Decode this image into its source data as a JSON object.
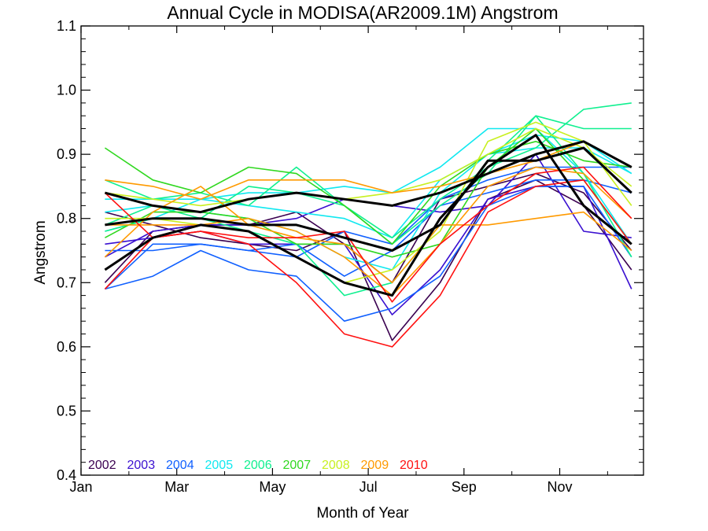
{
  "chart_data": {
    "type": "line",
    "title": "Annual Cycle in MODISA(AR2009.1M) Angstrom",
    "xlabel": "Month of Year",
    "ylabel": "Angstrom",
    "xlim": [
      1,
      12.75
    ],
    "ylim": [
      0.4,
      1.1
    ],
    "xticks": [
      {
        "value": 1,
        "label": "Jan"
      },
      {
        "value": 3,
        "label": "Mar"
      },
      {
        "value": 5,
        "label": "May"
      },
      {
        "value": 7,
        "label": "Jul"
      },
      {
        "value": 9,
        "label": "Sep"
      },
      {
        "value": 11,
        "label": "Nov"
      }
    ],
    "yticks": [
      {
        "value": 0.4,
        "label": "0.4"
      },
      {
        "value": 0.5,
        "label": "0.5"
      },
      {
        "value": 0.6,
        "label": "0.6"
      },
      {
        "value": 0.7,
        "label": "0.7"
      },
      {
        "value": 0.8,
        "label": "0.8"
      },
      {
        "value": 0.9,
        "label": "0.9"
      },
      {
        "value": 1.0,
        "label": "1.0"
      },
      {
        "value": 1.1,
        "label": "1.1"
      }
    ],
    "x": [
      1.5,
      2.5,
      3.5,
      4.5,
      5.5,
      6.5,
      7.5,
      8.5,
      9.5,
      10.5,
      11.5,
      12.5
    ],
    "legend_position": "bottom-left",
    "legend": [
      {
        "label": "2002",
        "color": "#3a0050"
      },
      {
        "label": "2003",
        "color": "#3a10d0"
      },
      {
        "label": "2004",
        "color": "#1060ff"
      },
      {
        "label": "2005",
        "color": "#10e8f0"
      },
      {
        "label": "2006",
        "color": "#10f090"
      },
      {
        "label": "2007",
        "color": "#30d820"
      },
      {
        "label": "2008",
        "color": "#c8f020"
      },
      {
        "label": "2009",
        "color": "#ff9a00"
      },
      {
        "label": "2010",
        "color": "#ff1010"
      }
    ],
    "series": [
      {
        "color": "#3a0050",
        "width": 1.6,
        "values": [
          0.81,
          0.79,
          0.77,
          0.76,
          0.75,
          0.78,
          0.61,
          0.7,
          0.83,
          0.86,
          0.82,
          0.72
        ]
      },
      {
        "color": "#3a0050",
        "width": 1.6,
        "values": [
          0.7,
          0.78,
          0.79,
          0.79,
          0.81,
          0.76,
          0.7,
          0.83,
          0.85,
          0.87,
          0.84,
          0.75
        ]
      },
      {
        "color": "#3a10d0",
        "width": 1.6,
        "values": [
          0.76,
          0.77,
          0.78,
          0.76,
          0.76,
          0.76,
          0.65,
          0.72,
          0.83,
          0.85,
          0.85,
          0.69
        ]
      },
      {
        "color": "#3a10d0",
        "width": 1.6,
        "values": [
          0.74,
          0.78,
          0.79,
          0.79,
          0.8,
          0.83,
          0.82,
          0.81,
          0.82,
          0.9,
          0.78,
          0.77
        ]
      },
      {
        "color": "#1060ff",
        "width": 1.6,
        "values": [
          0.69,
          0.71,
          0.75,
          0.72,
          0.71,
          0.64,
          0.66,
          0.71,
          0.82,
          0.85,
          0.85,
          0.74
        ]
      },
      {
        "color": "#1060ff",
        "width": 1.6,
        "values": [
          0.75,
          0.75,
          0.76,
          0.75,
          0.76,
          0.71,
          0.75,
          0.82,
          0.84,
          0.86,
          0.86,
          0.84
        ]
      },
      {
        "color": "#1060ff",
        "width": 1.6,
        "values": [
          0.69,
          0.76,
          0.76,
          0.75,
          0.74,
          0.78,
          0.76,
          0.83,
          0.86,
          0.88,
          0.88,
          0.88
        ]
      },
      {
        "color": "#10e8f0",
        "width": 1.6,
        "values": [
          0.83,
          0.83,
          0.83,
          0.84,
          0.84,
          0.85,
          0.84,
          0.88,
          0.94,
          0.94,
          0.87,
          0.76
        ]
      },
      {
        "color": "#10e8f0",
        "width": 1.6,
        "values": [
          0.78,
          0.8,
          0.83,
          0.82,
          0.81,
          0.8,
          0.77,
          0.86,
          0.9,
          0.93,
          0.92,
          0.87
        ]
      },
      {
        "color": "#10e8f0",
        "width": 1.6,
        "values": [
          0.81,
          0.82,
          0.81,
          0.8,
          0.78,
          0.74,
          0.72,
          0.84,
          0.9,
          0.91,
          0.91,
          0.87
        ]
      },
      {
        "color": "#10f090",
        "width": 1.6,
        "values": [
          0.79,
          0.82,
          0.8,
          0.85,
          0.84,
          0.82,
          0.76,
          0.82,
          0.87,
          0.96,
          0.94,
          0.94
        ]
      },
      {
        "color": "#10f090",
        "width": 1.6,
        "values": [
          0.86,
          0.83,
          0.84,
          0.82,
          0.88,
          0.82,
          0.77,
          0.83,
          0.88,
          0.91,
          0.97,
          0.98
        ]
      },
      {
        "color": "#10f090",
        "width": 1.6,
        "values": [
          0.78,
          0.8,
          0.8,
          0.78,
          0.76,
          0.68,
          0.7,
          0.79,
          0.89,
          0.96,
          0.87,
          0.74
        ]
      },
      {
        "color": "#30d820",
        "width": 1.6,
        "values": [
          0.91,
          0.86,
          0.84,
          0.88,
          0.87,
          0.82,
          0.76,
          0.85,
          0.9,
          0.92,
          0.89,
          0.88
        ]
      },
      {
        "color": "#30d820",
        "width": 1.6,
        "values": [
          0.77,
          0.81,
          0.81,
          0.8,
          0.76,
          0.76,
          0.74,
          0.76,
          0.88,
          0.94,
          0.86,
          0.76
        ]
      },
      {
        "color": "#c8f020",
        "width": 1.6,
        "values": [
          0.8,
          0.8,
          0.79,
          0.78,
          0.74,
          0.7,
          0.72,
          0.78,
          0.92,
          0.95,
          0.92,
          0.82
        ]
      },
      {
        "color": "#c8f020",
        "width": 1.6,
        "values": [
          0.84,
          0.83,
          0.82,
          0.83,
          0.84,
          0.83,
          0.84,
          0.86,
          0.9,
          0.94,
          0.91,
          0.85
        ]
      },
      {
        "color": "#ff9a00",
        "width": 1.6,
        "values": [
          0.86,
          0.85,
          0.83,
          0.86,
          0.86,
          0.86,
          0.84,
          0.85,
          0.87,
          0.89,
          0.92,
          0.88
        ]
      },
      {
        "color": "#ff9a00",
        "width": 1.6,
        "values": [
          0.74,
          0.81,
          0.85,
          0.79,
          0.77,
          0.76,
          0.7,
          0.79,
          0.79,
          0.8,
          0.81,
          0.75
        ]
      },
      {
        "color": "#ff9a00",
        "width": 1.6,
        "values": [
          0.79,
          0.79,
          0.79,
          0.8,
          0.78,
          0.74,
          0.68,
          0.76,
          0.85,
          0.88,
          0.87,
          0.8
        ]
      },
      {
        "color": "#ff1010",
        "width": 1.6,
        "values": [
          0.69,
          0.77,
          0.78,
          0.76,
          0.7,
          0.62,
          0.6,
          0.68,
          0.81,
          0.85,
          0.86,
          0.76
        ]
      },
      {
        "color": "#ff1010",
        "width": 1.6,
        "values": [
          0.84,
          0.77,
          0.78,
          0.77,
          0.77,
          0.78,
          0.67,
          0.76,
          0.82,
          0.87,
          0.88,
          0.8
        ]
      },
      {
        "color": "#000000",
        "width": 3,
        "values": [
          0.84,
          0.82,
          0.81,
          0.83,
          0.84,
          0.83,
          0.82,
          0.84,
          0.87,
          0.9,
          0.92,
          0.88
        ]
      },
      {
        "color": "#000000",
        "width": 3,
        "values": [
          0.79,
          0.8,
          0.8,
          0.79,
          0.79,
          0.77,
          0.75,
          0.79,
          0.89,
          0.89,
          0.91,
          0.84
        ]
      },
      {
        "color": "#000000",
        "width": 3,
        "values": [
          0.72,
          0.77,
          0.79,
          0.78,
          0.74,
          0.7,
          0.68,
          0.8,
          0.88,
          0.93,
          0.82,
          0.76
        ]
      }
    ]
  }
}
